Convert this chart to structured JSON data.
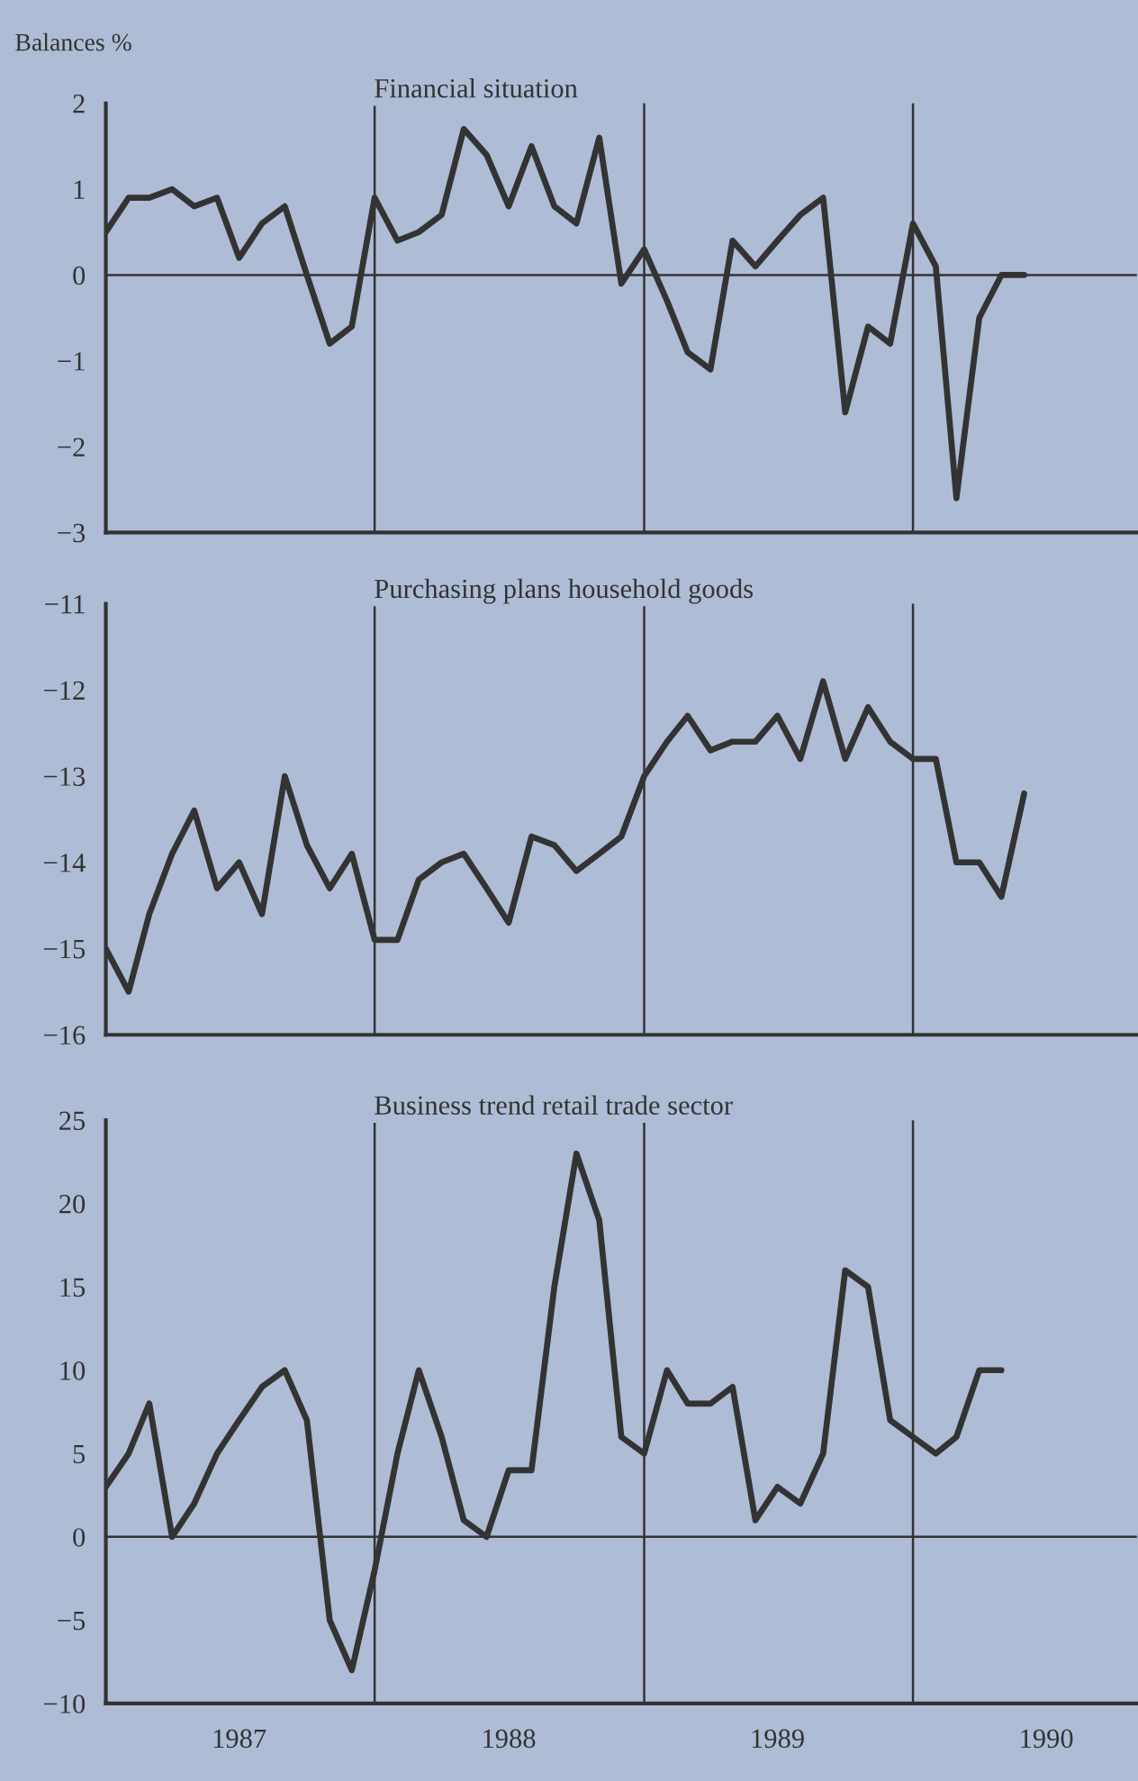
{
  "chart_data": [
    {
      "type": "line",
      "title": "Financial situation",
      "ylabel": "Balances %",
      "x": [
        "1987-01",
        "1987-02",
        "1987-03",
        "1987-04",
        "1987-05",
        "1987-06",
        "1987-07",
        "1987-08",
        "1987-09",
        "1987-10",
        "1987-11",
        "1987-12",
        "1988-01",
        "1988-02",
        "1988-03",
        "1988-04",
        "1988-05",
        "1988-06",
        "1988-07",
        "1988-08",
        "1988-09",
        "1988-10",
        "1988-11",
        "1988-12",
        "1989-01",
        "1989-02",
        "1989-03",
        "1989-04",
        "1989-05",
        "1989-06",
        "1989-07",
        "1989-08",
        "1989-09",
        "1989-10",
        "1989-11",
        "1989-12",
        "1990-01",
        "1990-02",
        "1990-03",
        "1990-04",
        "1990-05",
        "1990-06"
      ],
      "series": [
        {
          "color": "#333333",
          "values": [
            0.5,
            0.9,
            0.9,
            1.0,
            0.8,
            0.9,
            0.2,
            0.6,
            0.8,
            0.0,
            -0.8,
            -0.6,
            0.9,
            0.4,
            0.5,
            0.7,
            1.7,
            1.4,
            0.8,
            1.5,
            0.8,
            0.6,
            1.6,
            -0.1,
            0.3,
            -0.3,
            -0.9,
            -1.1,
            0.4,
            0.1,
            0.4,
            0.7,
            0.9,
            -1.6,
            -0.6,
            -0.8,
            0.6,
            0.1,
            -2.6,
            -0.5,
            0.0,
            0.0
          ]
        }
      ],
      "xlim": [
        "1987-01-01",
        "1990-11-01"
      ],
      "ylim": [
        -3,
        2
      ],
      "yticks": [
        {
          "value": -3,
          "label": "−3"
        },
        {
          "value": -2,
          "label": "−2"
        },
        {
          "value": -1,
          "label": "−1"
        },
        0,
        1,
        2
      ],
      "ref_lines": [
        {
          "axis": "y",
          "value": 0
        },
        {
          "axis": "x",
          "value": "1988-01-01"
        },
        {
          "axis": "x",
          "value": "1989-01-01"
        },
        {
          "axis": "x",
          "value": "1990-01-01"
        }
      ],
      "tick_labels": "y",
      "grid": false,
      "legend": false,
      "marker": "none",
      "line_style": "solid"
    },
    {
      "type": "line",
      "title": "Purchasing plans household goods",
      "x": [
        "1987-01",
        "1987-02",
        "1987-03",
        "1987-04",
        "1987-05",
        "1987-06",
        "1987-07",
        "1987-08",
        "1987-09",
        "1987-10",
        "1987-11",
        "1987-12",
        "1988-01",
        "1988-02",
        "1988-03",
        "1988-04",
        "1988-05",
        "1988-06",
        "1988-07",
        "1988-08",
        "1988-09",
        "1988-10",
        "1988-11",
        "1988-12",
        "1989-01",
        "1989-02",
        "1989-03",
        "1989-04",
        "1989-05",
        "1989-06",
        "1989-07",
        "1989-08",
        "1989-09",
        "1989-10",
        "1989-11",
        "1989-12",
        "1990-01",
        "1990-02",
        "1990-03",
        "1990-04",
        "1990-05",
        "1990-06"
      ],
      "series": [
        {
          "color": "#333333",
          "values": [
            -15.0,
            -15.5,
            -14.6,
            -13.9,
            -13.4,
            -14.3,
            -14.0,
            -14.6,
            -13.0,
            -13.8,
            -14.3,
            -13.9,
            -14.9,
            -14.9,
            -14.2,
            -14.0,
            -13.9,
            -14.3,
            -14.7,
            -13.7,
            -13.8,
            -14.1,
            -13.9,
            -13.7,
            -13.0,
            -12.6,
            -12.3,
            -12.7,
            -12.6,
            -12.6,
            -12.3,
            -12.8,
            -11.9,
            -12.8,
            -12.2,
            -12.6,
            -12.8,
            -12.8,
            -14.0,
            -14.0,
            -14.4,
            -13.2
          ]
        }
      ],
      "xlim": [
        "1987-01-01",
        "1990-11-01"
      ],
      "ylim": [
        -16,
        -11
      ],
      "yticks": [
        {
          "value": -16,
          "label": "−16"
        },
        {
          "value": -15,
          "label": "−15"
        },
        {
          "value": -14,
          "label": "−14"
        },
        {
          "value": -13,
          "label": "−13"
        },
        {
          "value": -12,
          "label": "−12"
        },
        {
          "value": -11,
          "label": "−11"
        }
      ],
      "ref_lines": [
        {
          "axis": "x",
          "value": "1988-01-01"
        },
        {
          "axis": "x",
          "value": "1989-01-01"
        },
        {
          "axis": "x",
          "value": "1990-01-01"
        }
      ],
      "tick_labels": "y",
      "grid": false,
      "legend": false,
      "marker": "none",
      "line_style": "solid"
    },
    {
      "type": "line",
      "title": "Business trend retail trade sector",
      "x": [
        "1987-01",
        "1987-02",
        "1987-03",
        "1987-04",
        "1987-05",
        "1987-06",
        "1987-07",
        "1987-08",
        "1987-09",
        "1987-10",
        "1987-11",
        "1987-12",
        "1988-01",
        "1988-02",
        "1988-03",
        "1988-04",
        "1988-05",
        "1988-06",
        "1988-07",
        "1988-08",
        "1988-09",
        "1988-10",
        "1988-11",
        "1988-12",
        "1989-01",
        "1989-02",
        "1989-03",
        "1989-04",
        "1989-05",
        "1989-06",
        "1989-07",
        "1989-08",
        "1989-09",
        "1989-10",
        "1989-11",
        "1989-12",
        "1990-01",
        "1990-02",
        "1990-03",
        "1990-04",
        "1990-05"
      ],
      "series": [
        {
          "color": "#333333",
          "values": [
            3,
            5,
            8,
            0,
            2,
            5,
            7,
            9,
            10,
            7,
            -5,
            -8,
            -2,
            5,
            10,
            6,
            1,
            0,
            4,
            4,
            15,
            23,
            19,
            6,
            5,
            10,
            8,
            8,
            9,
            1,
            3,
            2,
            5,
            16,
            15,
            7,
            6,
            5,
            6,
            10,
            10
          ]
        }
      ],
      "xlim": [
        "1987-01-01",
        "1990-11-01"
      ],
      "xticks": [
        {
          "value": "1987-07-01",
          "label": "1987"
        },
        {
          "value": "1988-07-01",
          "label": "1988"
        },
        {
          "value": "1989-07-01",
          "label": "1989"
        },
        {
          "value": "1990-07-01",
          "label": "1990"
        }
      ],
      "ylim": [
        -10,
        25
      ],
      "yticks": [
        {
          "value": -10,
          "label": "−10"
        },
        {
          "value": -5,
          "label": "−5"
        },
        0,
        5,
        10,
        15,
        20,
        25
      ],
      "ref_lines": [
        {
          "axis": "y",
          "value": 0
        },
        {
          "axis": "x",
          "value": "1988-01-01"
        },
        {
          "axis": "x",
          "value": "1989-01-01"
        },
        {
          "axis": "x",
          "value": "1990-01-01"
        }
      ],
      "grid": false,
      "legend": false,
      "marker": "none",
      "line_style": "solid"
    }
  ]
}
